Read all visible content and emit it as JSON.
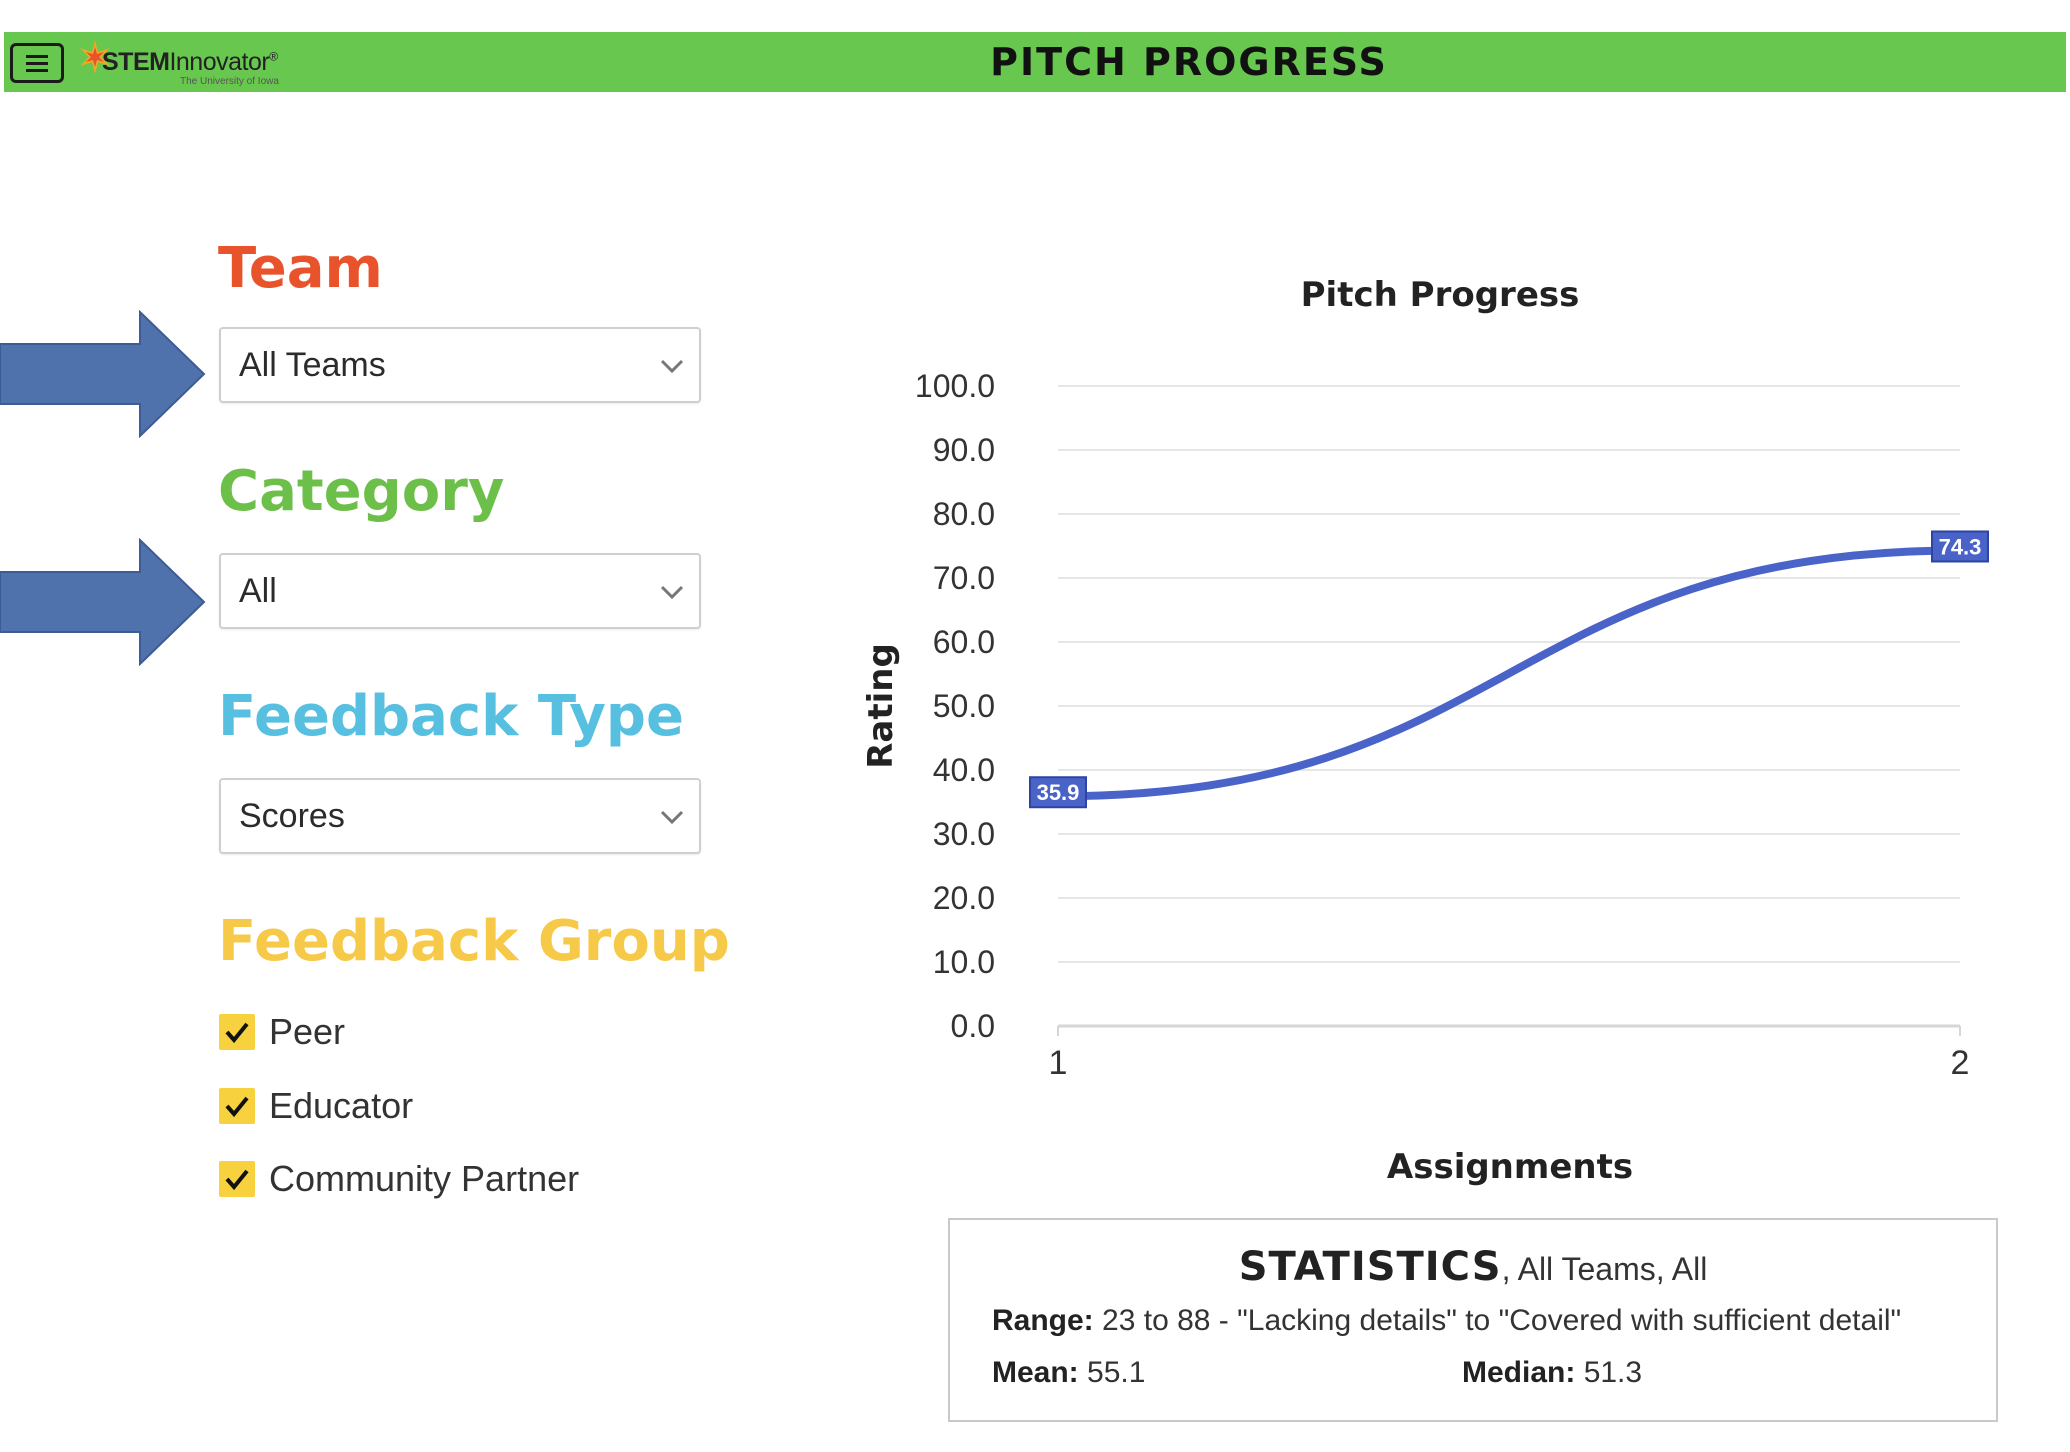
{
  "header": {
    "title": "PITCH PROGRESS",
    "logo": {
      "name": "STEMInnovator",
      "bold_part": "STEM",
      "rest_part": "Innovator",
      "subtitle": "The University of Iowa"
    },
    "bar_color": "#68c74f",
    "menu_icon": "hamburger-icon"
  },
  "filters": {
    "team": {
      "title": "Team",
      "value": "All Teams",
      "color": "#e8532b"
    },
    "category": {
      "title": "Category",
      "value": "All",
      "color": "#6cc04a"
    },
    "feedback_type": {
      "title": "Feedback Type",
      "value": "Scores",
      "color": "#57bfe0"
    },
    "feedback_group": {
      "title": "Feedback Group",
      "color": "#f7c948",
      "options": [
        {
          "label": "Peer",
          "checked": true
        },
        {
          "label": "Educator",
          "checked": true
        },
        {
          "label": "Community Partner",
          "checked": true
        }
      ]
    }
  },
  "chart_data": {
    "type": "line",
    "title": "Pitch Progress",
    "xlabel": "Assignments",
    "ylabel": "Rating",
    "x": [
      1,
      2
    ],
    "x_tick_labels": [
      "1",
      "2"
    ],
    "series": [
      {
        "values": [
          35.9,
          74.3
        ],
        "data_labels": [
          "35.9",
          "74.3"
        ],
        "color": "#4a63c8"
      }
    ],
    "ylim": [
      0,
      100
    ],
    "y_ticks": [
      0,
      10,
      20,
      30,
      40,
      50,
      60,
      70,
      80,
      90,
      100
    ],
    "y_tick_labels": [
      "0.0",
      "10.0",
      "20.0",
      "30.0",
      "40.0",
      "50.0",
      "60.0",
      "70.0",
      "80.0",
      "90.0",
      "100.0"
    ],
    "grid": true,
    "smooth": true
  },
  "statistics": {
    "title": "STATISTICS",
    "subtitle": ", All Teams, All",
    "range_label": "Range:",
    "range_value": "23 to 88 - \"Lacking details\" to \"Covered with sufficient detail\"",
    "mean_label": "Mean:",
    "mean_value": "55.1",
    "median_label": "Median:",
    "median_value": "51.3"
  },
  "arrow_color": "#4f72ad"
}
